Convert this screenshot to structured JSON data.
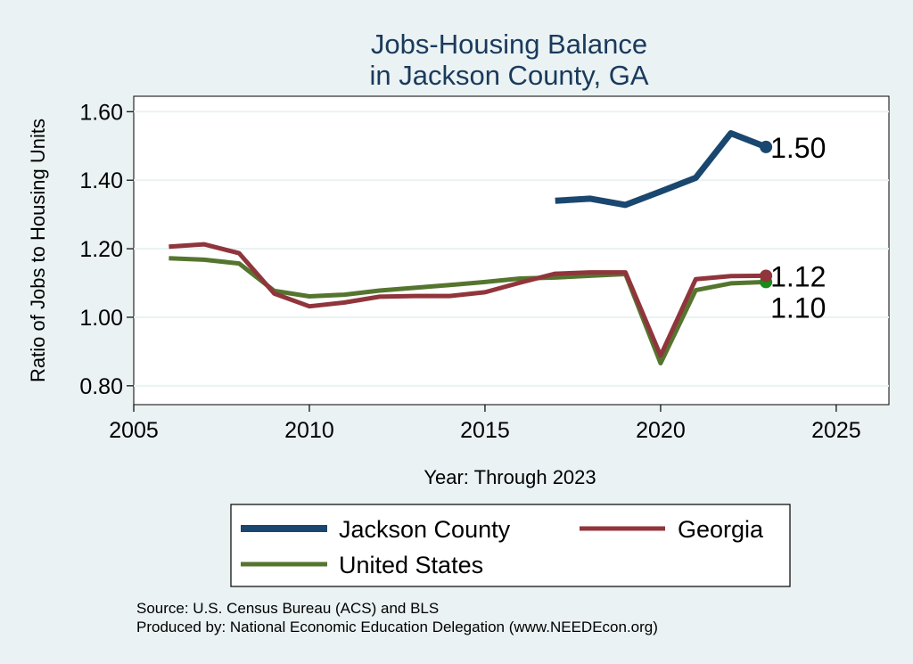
{
  "chart_data": {
    "type": "line",
    "title": [
      "Jobs-Housing Balance",
      "in Jackson County, GA"
    ],
    "xlabel": "Year: Through 2023",
    "ylabel": "Ratio of Jobs to Housing Units",
    "xlim": [
      2005,
      2026.5
    ],
    "ylim": [
      0.745,
      1.645
    ],
    "x_ticks": [
      2005,
      2010,
      2015,
      2020,
      2025
    ],
    "y_ticks": [
      0.8,
      1.0,
      1.2,
      1.4,
      1.6
    ],
    "y_tick_labels": [
      "0.80",
      "1.00",
      "1.20",
      "1.40",
      "1.60"
    ],
    "grid": true,
    "series": [
      {
        "name": "United States",
        "color": "#55752f",
        "x": [
          2006,
          2007,
          2008,
          2009,
          2010,
          2011,
          2012,
          2013,
          2014,
          2015,
          2016,
          2017,
          2018,
          2019,
          2020,
          2021,
          2022,
          2023
        ],
        "values": [
          1.172,
          1.168,
          1.157,
          1.077,
          1.061,
          1.066,
          1.078,
          1.086,
          1.094,
          1.103,
          1.113,
          1.116,
          1.121,
          1.126,
          0.866,
          1.079,
          1.099,
          1.103
        ],
        "end_label": "1.10"
      },
      {
        "name": "Georgia",
        "color": "#90353b",
        "x": [
          2006,
          2007,
          2008,
          2009,
          2010,
          2011,
          2012,
          2013,
          2014,
          2015,
          2016,
          2017,
          2018,
          2019,
          2020,
          2021,
          2022,
          2023
        ],
        "values": [
          1.206,
          1.213,
          1.187,
          1.069,
          1.032,
          1.043,
          1.06,
          1.062,
          1.062,
          1.073,
          1.101,
          1.127,
          1.131,
          1.131,
          0.888,
          1.111,
          1.12,
          1.121
        ],
        "end_label": "1.12"
      },
      {
        "name": "Jackson County",
        "color": "#1a476f",
        "x": [
          2017,
          2018,
          2019,
          2020,
          2021,
          2022,
          2023
        ],
        "values": [
          1.34,
          1.346,
          1.328,
          1.367,
          1.407,
          1.537,
          1.497
        ],
        "end_label": "1.50"
      }
    ],
    "legend": [
      {
        "label": "Jackson County",
        "color": "#1a476f"
      },
      {
        "label": "Georgia",
        "color": "#90353b"
      },
      {
        "label": "United States",
        "color": "#55752f"
      }
    ],
    "legend_placement": "bottom"
  },
  "source_lines": [
    "Source: U.S. Census Bureau (ACS) and BLS",
    "Produced by: National Economic Education Delegation (www.NEEDEcon.org)"
  ]
}
